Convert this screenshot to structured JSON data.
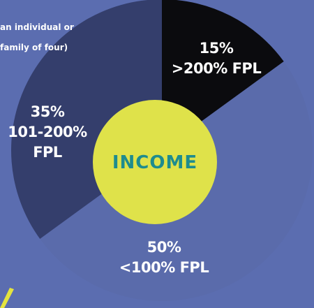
{
  "chart_data": {
    "type": "donut",
    "categories": [
      ">200% FPL",
      "<100% FPL",
      "101-200% FPL"
    ],
    "values": [
      15,
      50,
      35
    ],
    "value_labels": [
      "15%",
      "50%",
      "35%"
    ],
    "colors": [
      "#0b0b0e",
      "#5a6bab",
      "#343e6c"
    ],
    "center_label": "INCOME",
    "annotations": [
      "an individual or",
      "family of four)"
    ]
  }
}
